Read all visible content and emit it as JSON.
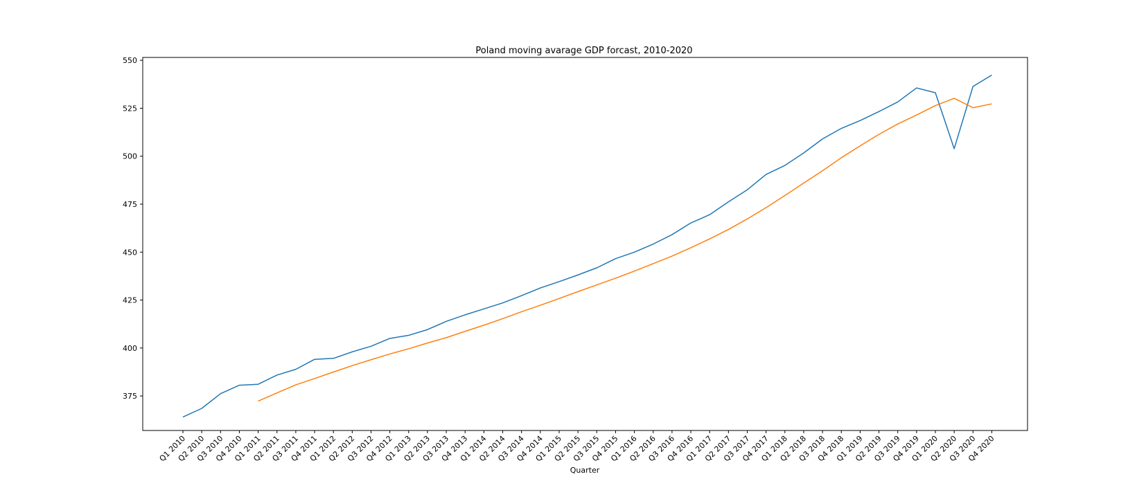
{
  "chart_data": {
    "type": "line",
    "title": "Poland moving avarage GDP forcast, 2010-2020",
    "xlabel": "Quarter",
    "ylabel": "",
    "categories": [
      "Q1 2010",
      "Q2 2010",
      "Q3 2010",
      "Q4 2010",
      "Q1 2011",
      "Q2 2011",
      "Q3 2011",
      "Q4 2011",
      "Q1 2012",
      "Q2 2012",
      "Q3 2012",
      "Q4 2012",
      "Q1 2013",
      "Q2 2013",
      "Q3 2013",
      "Q4 2013",
      "Q1 2014",
      "Q2 2014",
      "Q3 2014",
      "Q4 2014",
      "Q1 2015",
      "Q2 2015",
      "Q3 2015",
      "Q4 2015",
      "Q1 2016",
      "Q2 2016",
      "Q3 2016",
      "Q4 2016",
      "Q1 2017",
      "Q2 2017",
      "Q3 2017",
      "Q4 2017",
      "Q1 2018",
      "Q2 2018",
      "Q3 2018",
      "Q4 2018",
      "Q1 2019",
      "Q2 2019",
      "Q3 2019",
      "Q4 2019",
      "Q1 2020",
      "Q2 2020",
      "Q3 2020",
      "Q4 2020"
    ],
    "ylim": [
      357,
      551.5
    ],
    "yticks": [
      375,
      400,
      425,
      450,
      475,
      500,
      525,
      550
    ],
    "grid": false,
    "series": [
      {
        "color": "#1f77b4",
        "values": [
          364.0,
          368.5,
          376.2,
          380.6,
          381.1,
          385.9,
          388.9,
          394.1,
          394.6,
          398.0,
          400.9,
          405.0,
          406.6,
          409.6,
          413.9,
          417.3,
          420.4,
          423.5,
          427.3,
          431.3,
          434.6,
          438.1,
          441.8,
          446.6,
          450.0,
          454.2,
          459.1,
          465.2,
          469.5,
          476.2,
          482.5,
          490.5,
          495.2,
          501.7,
          509.0,
          514.5,
          518.6,
          523.3,
          528.3,
          535.6,
          533.1,
          503.9,
          536.4,
          542.3
        ]
      },
      {
        "color": "#ff7f0e",
        "values": [
          null,
          null,
          null,
          null,
          372.3,
          376.6,
          380.8,
          384.1,
          387.5,
          390.8,
          393.9,
          396.9,
          399.6,
          402.6,
          405.4,
          408.7,
          411.9,
          415.3,
          418.9,
          422.3,
          425.8,
          429.4,
          432.9,
          436.4,
          440.1,
          444.0,
          447.9,
          452.3,
          456.9,
          461.8,
          467.3,
          473.2,
          479.5,
          486.0,
          492.4,
          499.2,
          505.4,
          511.4,
          516.8,
          521.5,
          526.4,
          530.2,
          525.3,
          527.3
        ]
      }
    ]
  }
}
